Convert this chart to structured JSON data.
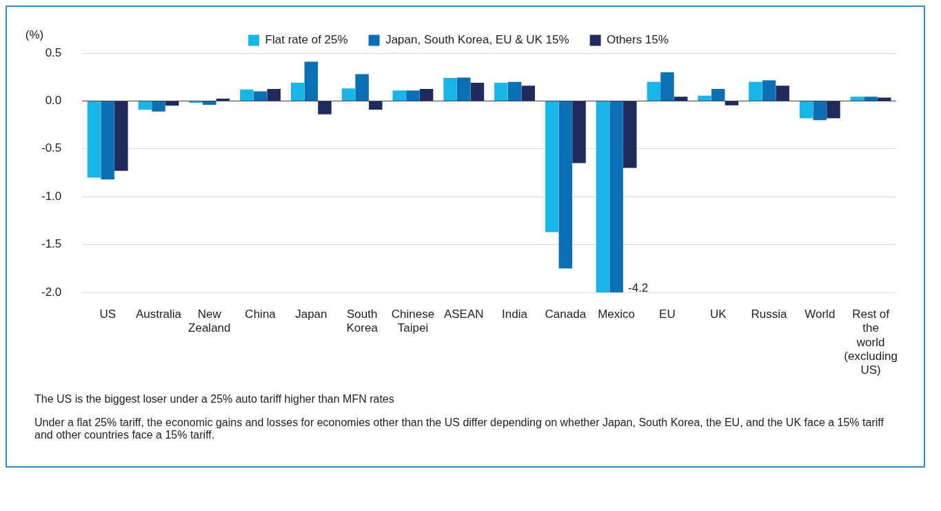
{
  "chart_data": {
    "type": "bar",
    "ylabel": "(%)",
    "categories": [
      "US",
      "Australia",
      "New Zealand",
      "China",
      "Japan",
      "South Korea",
      "Chinese Taipei",
      "ASEAN",
      "India",
      "Canada",
      "Mexico",
      "EU",
      "UK",
      "Russia",
      "World",
      "Rest of the world (excluding US)"
    ],
    "series": [
      {
        "name": "Flat rate of 25%",
        "color": "#19b5e8",
        "values": [
          -0.8,
          -0.09,
          -0.02,
          0.12,
          0.19,
          0.13,
          0.11,
          0.24,
          0.19,
          -1.37,
          -2.0,
          0.2,
          0.055,
          0.2,
          -0.18,
          0.045
        ]
      },
      {
        "name": "Japan, South Korea, EU & UK 15%",
        "color": "#0a6fb5",
        "values": [
          -0.82,
          -0.11,
          -0.04,
          0.1,
          0.41,
          0.28,
          0.11,
          0.245,
          0.2,
          -1.75,
          -2.0,
          0.3,
          0.125,
          0.215,
          -0.2,
          0.045
        ]
      },
      {
        "name": "Others 15%",
        "color": "#1f2a5e",
        "values": [
          -0.73,
          -0.05,
          0.025,
          0.125,
          -0.14,
          -0.09,
          0.125,
          0.19,
          0.16,
          -0.65,
          -0.7,
          0.045,
          -0.045,
          0.16,
          -0.18,
          0.035
        ]
      }
    ],
    "ylim": [
      -2.0,
      0.5
    ],
    "yticks": [
      {
        "value": -2.0,
        "label": "-2.0"
      },
      {
        "value": -1.5,
        "label": "-1.5"
      },
      {
        "value": -1.0,
        "label": "-1.0"
      },
      {
        "value": -0.5,
        "label": "-0.5"
      },
      {
        "value": 0.0,
        "label": "0.0"
      },
      {
        "value": 0.5,
        "label": "0.5"
      }
    ],
    "grid": "y",
    "legend": "top",
    "annotations": [
      {
        "text": "-4.2",
        "x": "Mexico",
        "y": -2.0
      },
      "The US is the biggest loser under a 25% auto tariff higher than MFN rates",
      "Under a flat 25% tariff, the economic gains and losses for economies other than the US differ depending on whether Japan, South Korea, the EU, and the UK face a 15% tariff and other countries face a 15% tariff."
    ]
  }
}
